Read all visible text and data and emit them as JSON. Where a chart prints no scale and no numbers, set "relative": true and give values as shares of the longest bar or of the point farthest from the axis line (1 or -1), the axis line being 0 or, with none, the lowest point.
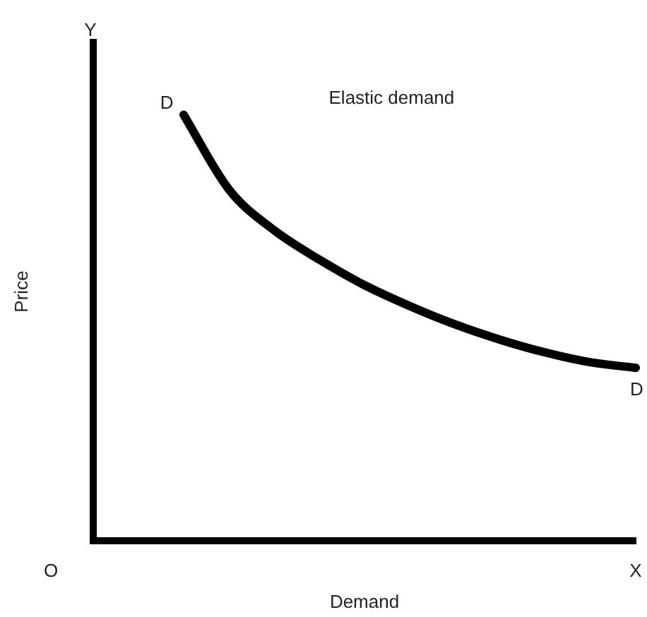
{
  "chart_data": {
    "type": "line",
    "relative": true,
    "xlabel": "Demand",
    "ylabel": "Price",
    "categories": [
      null,
      null,
      null,
      null,
      null,
      null,
      null,
      null,
      null,
      null,
      null,
      null,
      null
    ],
    "series": [
      {
        "color": "#000000",
        "values": [
          null,
          null,
          1,
          0.825,
          0.729,
          0.66,
          0.6,
          0.551,
          0.508,
          0.472,
          0.442,
          0.419,
          0.406
        ]
      }
    ],
    "annotations": [
      "Elastic demand",
      "D",
      "D",
      "Y",
      "X",
      "O"
    ],
    "grid": false,
    "legend": false,
    "marker": "none",
    "line_style": "solid"
  }
}
